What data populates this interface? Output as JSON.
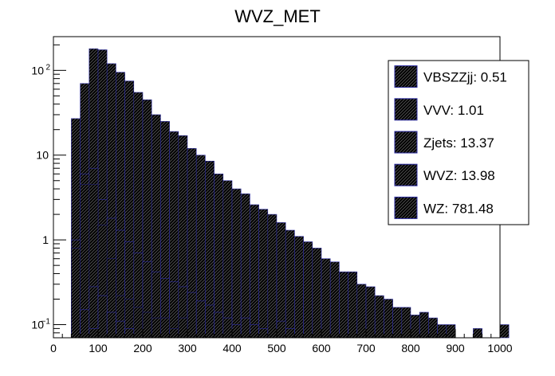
{
  "chart_data": {
    "type": "bar",
    "title": "WVZ_MET",
    "xlabel": "",
    "ylabel": "",
    "yscale": "log",
    "xlim": [
      0,
      1000
    ],
    "ylim": [
      0.07,
      250
    ],
    "bin_width": 20,
    "bin_start": 40,
    "stacked": true,
    "x_ticks": [
      0,
      100,
      200,
      300,
      400,
      500,
      600,
      700,
      800,
      900,
      1000
    ],
    "y_ticks": [
      {
        "value": 0.1,
        "label": "10",
        "exp": "−1"
      },
      {
        "value": 1,
        "label": "1",
        "exp": ""
      },
      {
        "value": 10,
        "label": "10",
        "exp": ""
      },
      {
        "value": 100,
        "label": "10",
        "exp": "2"
      }
    ],
    "series": [
      {
        "name": "WZ",
        "yield": "781.48",
        "color": "#c080d0",
        "stack_tops": [
          27,
          70,
          180,
          175,
          120,
          95,
          75,
          55,
          45,
          30,
          25,
          19,
          17,
          12,
          10,
          8.5,
          6.0,
          5.0,
          4.0,
          3.5,
          2.6,
          2.3,
          2.0,
          1.6,
          1.3,
          1.1,
          0.95,
          0.8,
          0.6,
          0.55,
          0.42,
          0.42,
          0.3,
          0.28,
          0.22,
          0.2,
          0.16,
          0.16,
          0.13,
          0.14,
          0.12,
          0.1,
          0.1,
          0,
          0,
          0.09,
          0,
          0,
          0.1,
          0
        ]
      },
      {
        "name": "WVZ",
        "yield": "13.98",
        "color": "#f5f577",
        "stack_tops": [
          1.0,
          6.0,
          7.0,
          3.0,
          1.8,
          1.3,
          0.95,
          0.7,
          0.55,
          0.42,
          0.35,
          0.32,
          0.28,
          0.24,
          0.19,
          0.17,
          0.14,
          0.12,
          0.1,
          0.12,
          0.1,
          0.09,
          0,
          0.11,
          0.09,
          0,
          0,
          0,
          0,
          0,
          0,
          0,
          0,
          0,
          0,
          0,
          0,
          0,
          0,
          0,
          0,
          0,
          0,
          0,
          0,
          0,
          0,
          0,
          0,
          0
        ]
      },
      {
        "name": "Zjets",
        "yield": "13.37",
        "color": "#1a1a70",
        "stack_tops": [
          0.8,
          4.5,
          4.5,
          1.5,
          0.6,
          0.22,
          0.2,
          0.16,
          0.14,
          0.12,
          0.12,
          0.09,
          0.12,
          0,
          0,
          0,
          0,
          0,
          0,
          0,
          0,
          0,
          0,
          0,
          0,
          0,
          0,
          0,
          0,
          0,
          0,
          0,
          0,
          0,
          0,
          0,
          0,
          0,
          0,
          0,
          0,
          0,
          0,
          0,
          0,
          0,
          0,
          0,
          0,
          0
        ]
      },
      {
        "name": "VVV",
        "yield": "1.01",
        "color": "#7bd98d",
        "stack_tops": [
          0,
          0.15,
          0.28,
          0.22,
          0.14,
          0.11,
          0.09,
          0,
          0,
          0,
          0,
          0,
          0,
          0,
          0,
          0,
          0,
          0,
          0,
          0,
          0,
          0,
          0,
          0,
          0,
          0,
          0,
          0,
          0,
          0,
          0,
          0,
          0,
          0,
          0,
          0,
          0,
          0,
          0,
          0,
          0,
          0,
          0,
          0,
          0,
          0,
          0,
          0,
          0,
          0
        ]
      },
      {
        "name": "VBSZZjj",
        "yield": "0.51",
        "color": "#cc7f66",
        "stack_tops": [
          0,
          0,
          0.09,
          0,
          0,
          0,
          0,
          0,
          0,
          0,
          0,
          0,
          0,
          0,
          0,
          0,
          0,
          0,
          0,
          0,
          0,
          0,
          0,
          0,
          0,
          0,
          0,
          0,
          0,
          0,
          0,
          0,
          0,
          0,
          0,
          0,
          0,
          0,
          0,
          0,
          0,
          0,
          0,
          0,
          0,
          0,
          0,
          0,
          0,
          0
        ]
      }
    ],
    "legend": {
      "position": "top-right",
      "entries": [
        {
          "label": "VBSZZjj: 0.51",
          "color": "#cc7f66"
        },
        {
          "label": "VVV: 1.01",
          "color": "#7bd98d"
        },
        {
          "label": "Zjets: 13.37",
          "color": "#1a1a70"
        },
        {
          "label": "WVZ: 13.98",
          "color": "#f5f577"
        },
        {
          "label": "WZ: 781.48",
          "color": "#c080d0"
        }
      ]
    }
  }
}
